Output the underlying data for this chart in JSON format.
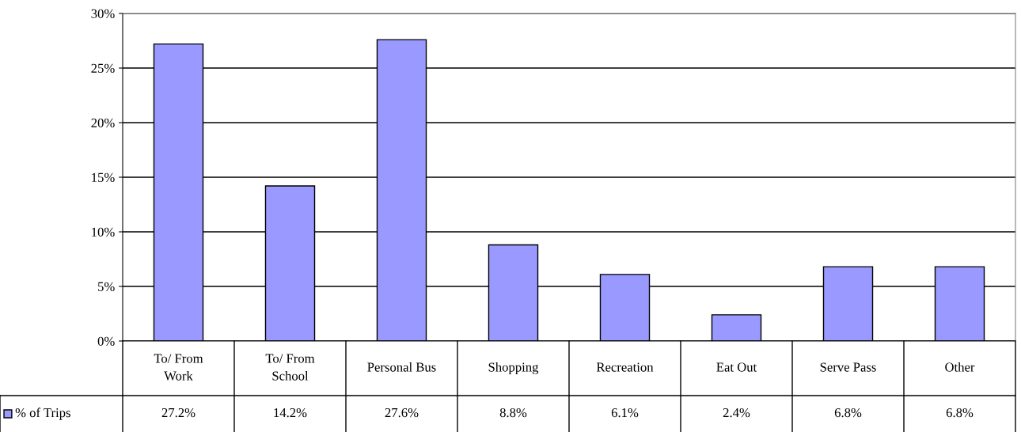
{
  "chart_data": {
    "type": "bar",
    "categories": [
      "To/ From\nWork",
      "To/ From\nSchool",
      "Personal Bus",
      "Shopping",
      "Recreation",
      "Eat Out",
      "Serve Pass",
      "Other"
    ],
    "series": [
      {
        "name": "% of Trips",
        "color": "#9999ff",
        "values": [
          27.2,
          14.2,
          27.6,
          8.8,
          6.1,
          2.4,
          6.8,
          6.8
        ],
        "value_labels": [
          "27.2%",
          "14.2%",
          "27.6%",
          "8.8%",
          "6.1%",
          "2.4%",
          "6.8%",
          "6.8%"
        ]
      }
    ],
    "ylim": [
      0,
      30
    ],
    "yticks": [
      {
        "value": 0,
        "label": "0%"
      },
      {
        "value": 5,
        "label": "5%"
      },
      {
        "value": 10,
        "label": "10%"
      },
      {
        "value": 15,
        "label": "15%"
      },
      {
        "value": 20,
        "label": "20%"
      },
      {
        "value": 25,
        "label": "25%"
      },
      {
        "value": 30,
        "label": "30%"
      }
    ],
    "grid": "y",
    "legend": "bottom left"
  }
}
